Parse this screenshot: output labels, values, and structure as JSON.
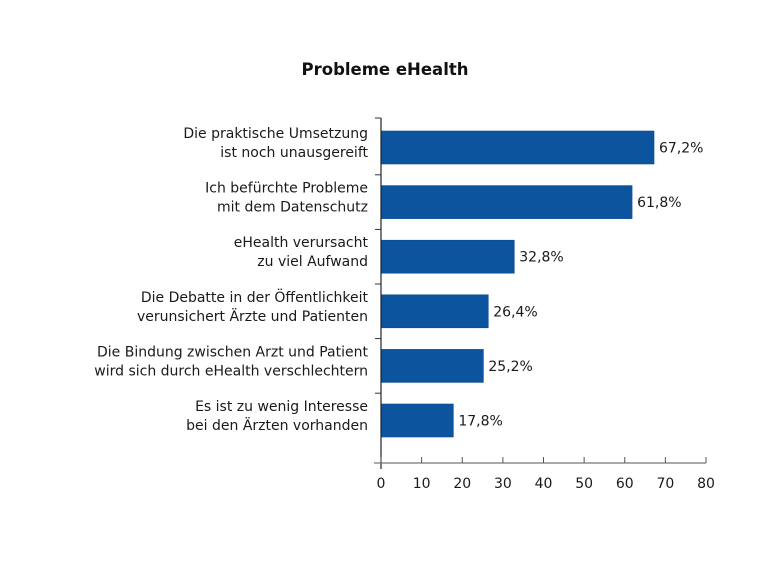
{
  "chart_data": {
    "type": "bar",
    "orientation": "horizontal",
    "title": "Probleme eHealth",
    "xlabel": "",
    "ylabel": "",
    "xlim": [
      0,
      80
    ],
    "xticks": [
      0,
      10,
      20,
      30,
      40,
      50,
      60,
      70,
      80
    ],
    "grid": false,
    "legend": "none",
    "bar_color": "#0d549f",
    "categories": [
      [
        "Die praktische Umsetzung",
        "ist noch unausgereift"
      ],
      [
        "Ich befürchte Probleme",
        "mit dem Datenschutz"
      ],
      [
        "eHealth verursacht",
        "zu viel Aufwand"
      ],
      [
        "Die Debatte in der Öffentlichkeit",
        "verunsichert Ärzte und Patienten"
      ],
      [
        "Die Bindung zwischen Arzt und Patient",
        "wird sich durch eHealth verschlechtern"
      ],
      [
        "Es ist zu wenig Interesse",
        "bei den Ärzten vorhanden"
      ]
    ],
    "values": [
      67.2,
      61.8,
      32.8,
      26.4,
      25.2,
      17.8
    ],
    "value_labels": [
      "67,2%",
      "61,8%",
      "32,8%",
      "26,4%",
      "25,2%",
      "17,8%"
    ]
  }
}
